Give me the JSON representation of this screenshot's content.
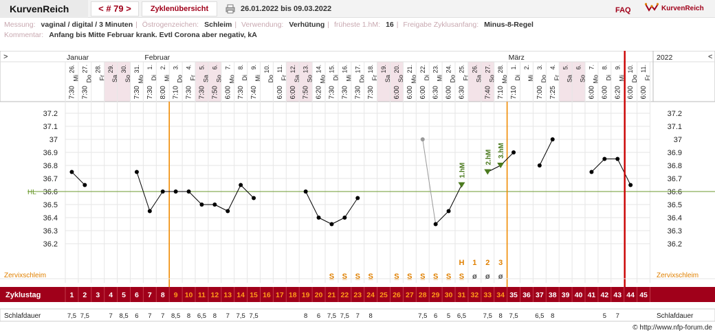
{
  "header": {
    "brand": "KurvenReich",
    "cycle_nav": "< # 79 >",
    "overview": "Zyklenübersicht",
    "date_range": "26.01.2022 bis 09.03.2022",
    "faq": "FAQ",
    "logo_text": "KurvenReich"
  },
  "meta": {
    "row1": [
      {
        "key": "Messung:",
        "value": "vaginal / digital / 3 Minuten"
      },
      {
        "key": "Östrogenzeichen:",
        "value": "Schleim"
      },
      {
        "key": "Verwendung:",
        "value": "Verhütung"
      },
      {
        "key": "früheste 1.hM:",
        "value": "16"
      },
      {
        "key": "Freigabe Zyklusanfang:",
        "value": "Minus-8-Regel"
      }
    ],
    "comment_key": "Kommentar:",
    "comment_value": "Anfang bis Mitte Februar krank. Evtl Corona aber negativ, kA"
  },
  "nav": {
    "prev": ">",
    "next": "<",
    "year": "2022"
  },
  "months": [
    {
      "label": "Januar",
      "col": 0
    },
    {
      "label": "Februar",
      "col": 6
    },
    {
      "label": "März",
      "col": 34
    }
  ],
  "days": [
    {
      "d": "26.",
      "w": "Mi",
      "t": "7:30",
      "we": false
    },
    {
      "d": "27.",
      "w": "Do",
      "t": "7:30",
      "we": false
    },
    {
      "d": "28.",
      "w": "Fr",
      "t": "",
      "we": false
    },
    {
      "d": "29.",
      "w": "Sa",
      "t": "",
      "we": true
    },
    {
      "d": "30.",
      "w": "So",
      "t": "",
      "we": true
    },
    {
      "d": "31.",
      "w": "Mo",
      "t": "7:30",
      "we": false
    },
    {
      "d": "1.",
      "w": "Di",
      "t": "7:30",
      "we": false
    },
    {
      "d": "2.",
      "w": "Mi",
      "t": "8:00",
      "we": false
    },
    {
      "d": "3.",
      "w": "Do",
      "t": "7:10",
      "we": false
    },
    {
      "d": "4.",
      "w": "Fr",
      "t": "7:30",
      "we": false
    },
    {
      "d": "5.",
      "w": "Sa",
      "t": "7:30",
      "we": true
    },
    {
      "d": "6.",
      "w": "So",
      "t": "7:50",
      "we": true
    },
    {
      "d": "7.",
      "w": "Mo",
      "t": "6:00",
      "we": false
    },
    {
      "d": "8.",
      "w": "Di",
      "t": "7:30",
      "we": false
    },
    {
      "d": "9.",
      "w": "Mi",
      "t": "7:40",
      "we": false
    },
    {
      "d": "10.",
      "w": "Do",
      "t": "",
      "we": false
    },
    {
      "d": "11.",
      "w": "Fr",
      "t": "6:00",
      "we": false
    },
    {
      "d": "12.",
      "w": "Sa",
      "t": "6:00",
      "we": true
    },
    {
      "d": "13.",
      "w": "So",
      "t": "7:50",
      "we": true
    },
    {
      "d": "14.",
      "w": "Mo",
      "t": "6:20",
      "we": false
    },
    {
      "d": "15.",
      "w": "Di",
      "t": "7:30",
      "we": false
    },
    {
      "d": "16.",
      "w": "Mi",
      "t": "7:30",
      "we": false
    },
    {
      "d": "17.",
      "w": "Do",
      "t": "7:30",
      "we": false
    },
    {
      "d": "18.",
      "w": "Fr",
      "t": "7:30",
      "we": false
    },
    {
      "d": "19.",
      "w": "Sa",
      "t": "",
      "we": true
    },
    {
      "d": "20.",
      "w": "So",
      "t": "6:00",
      "we": true
    },
    {
      "d": "21.",
      "w": "Mo",
      "t": "6:00",
      "we": false
    },
    {
      "d": "22.",
      "w": "Di",
      "t": "6:00",
      "we": false
    },
    {
      "d": "23.",
      "w": "Mi",
      "t": "6:30",
      "we": false
    },
    {
      "d": "24.",
      "w": "Do",
      "t": "6:00",
      "we": false
    },
    {
      "d": "25.",
      "w": "Fr",
      "t": "6:30",
      "we": false
    },
    {
      "d": "26.",
      "w": "Sa",
      "t": "",
      "we": true
    },
    {
      "d": "27.",
      "w": "So",
      "t": "7:40",
      "we": true
    },
    {
      "d": "28.",
      "w": "Mo",
      "t": "7:10",
      "we": false
    },
    {
      "d": "1.",
      "w": "Di",
      "t": "7:10",
      "we": false
    },
    {
      "d": "2.",
      "w": "Mi",
      "t": "",
      "we": false
    },
    {
      "d": "3.",
      "w": "Do",
      "t": "7:00",
      "we": false
    },
    {
      "d": "4.",
      "w": "Fr",
      "t": "7:25",
      "we": false
    },
    {
      "d": "5.",
      "w": "Sa",
      "t": "",
      "we": true
    },
    {
      "d": "6.",
      "w": "So",
      "t": "",
      "we": true
    },
    {
      "d": "7.",
      "w": "Mo",
      "t": "6:00",
      "we": false
    },
    {
      "d": "8.",
      "w": "Di",
      "t": "6:00",
      "we": false
    },
    {
      "d": "9.",
      "w": "Mi",
      "t": "6:20",
      "we": false
    },
    {
      "d": "10.",
      "w": "Do",
      "t": "6:00",
      "we": false
    },
    {
      "d": "11.",
      "w": "Fr",
      "t": "6:00",
      "we": false
    }
  ],
  "chart_data": {
    "type": "line",
    "y_ticks": [
      "37.2",
      "37.1",
      "37",
      "36.9",
      "36.8",
      "36.7",
      "36.6",
      "36.5",
      "36.4",
      "36.3",
      "36.2"
    ],
    "ylim": [
      36.1,
      37.3
    ],
    "hl_label": "HL",
    "hl_value": 36.6,
    "cycle_days": [
      1,
      2,
      3,
      4,
      5,
      6,
      7,
      8,
      9,
      10,
      11,
      12,
      13,
      14,
      15,
      16,
      17,
      18,
      19,
      20,
      21,
      22,
      23,
      24,
      25,
      26,
      27,
      28,
      29,
      30,
      31,
      32,
      33,
      34,
      35,
      36,
      37,
      38,
      39,
      40,
      41,
      42,
      43,
      44,
      45
    ],
    "temperatures": [
      36.75,
      36.65,
      null,
      null,
      null,
      36.75,
      36.45,
      36.6,
      36.6,
      36.6,
      36.5,
      36.5,
      36.45,
      36.65,
      36.55,
      null,
      null,
      null,
      36.6,
      36.4,
      36.35,
      36.4,
      36.55,
      null,
      null,
      null,
      null,
      37.0,
      36.35,
      36.45,
      36.65,
      null,
      36.75,
      36.8,
      36.9,
      null,
      36.8,
      37.0,
      null,
      null,
      36.75,
      36.85,
      36.85,
      36.65,
      null
    ],
    "excluded_day": 28,
    "marker_labels": [
      {
        "day": 31,
        "label": "1.hM"
      },
      {
        "day": 33,
        "label": "2.hM"
      },
      {
        "day": 34,
        "label": "3.hM"
      }
    ],
    "orange_lines_day": [
      8,
      34
    ],
    "current_day": 44,
    "cervix_label": "Zervixschleim",
    "cervix_marks": [
      {
        "day": 21,
        "sym": "S̲"
      },
      {
        "day": 22,
        "sym": "S̲"
      },
      {
        "day": 23,
        "sym": "S̲"
      },
      {
        "day": 24,
        "sym": "S̲"
      },
      {
        "day": 26,
        "sym": "S̲"
      },
      {
        "day": 27,
        "sym": "S̲"
      },
      {
        "day": 28,
        "sym": "S̲"
      },
      {
        "day": 29,
        "sym": "S̲"
      },
      {
        "day": 30,
        "sym": "S̲"
      },
      {
        "day": 31,
        "sym": "S̲"
      },
      {
        "day": 32,
        "sym": "ø"
      },
      {
        "day": 33,
        "sym": "ø"
      },
      {
        "day": 34,
        "sym": "ø"
      }
    ],
    "peak_labels": [
      {
        "day": 31,
        "label": "H"
      },
      {
        "day": 32,
        "label": "1"
      },
      {
        "day": 33,
        "label": "2"
      },
      {
        "day": 34,
        "label": "3"
      }
    ],
    "cycle_label": "Zyklustag",
    "sleep_label": "Schlafdauer",
    "sleep": [
      "7,5",
      "7,5",
      "",
      "7",
      "8,5",
      "6",
      "7",
      "7",
      "8,5",
      "8",
      "6,5",
      "8",
      "7",
      "7,5",
      "7,5",
      "",
      "",
      "",
      "8",
      "6",
      "7,5",
      "7,5",
      "7",
      "8",
      "",
      "",
      "",
      "7,5",
      "6",
      "5",
      "6,5",
      "",
      "7,5",
      "8",
      "7,5",
      "",
      "6,5",
      "8",
      "",
      "",
      "",
      "5",
      "7",
      "",
      ""
    ]
  },
  "credit": "© http://www.nfp-forum.de"
}
